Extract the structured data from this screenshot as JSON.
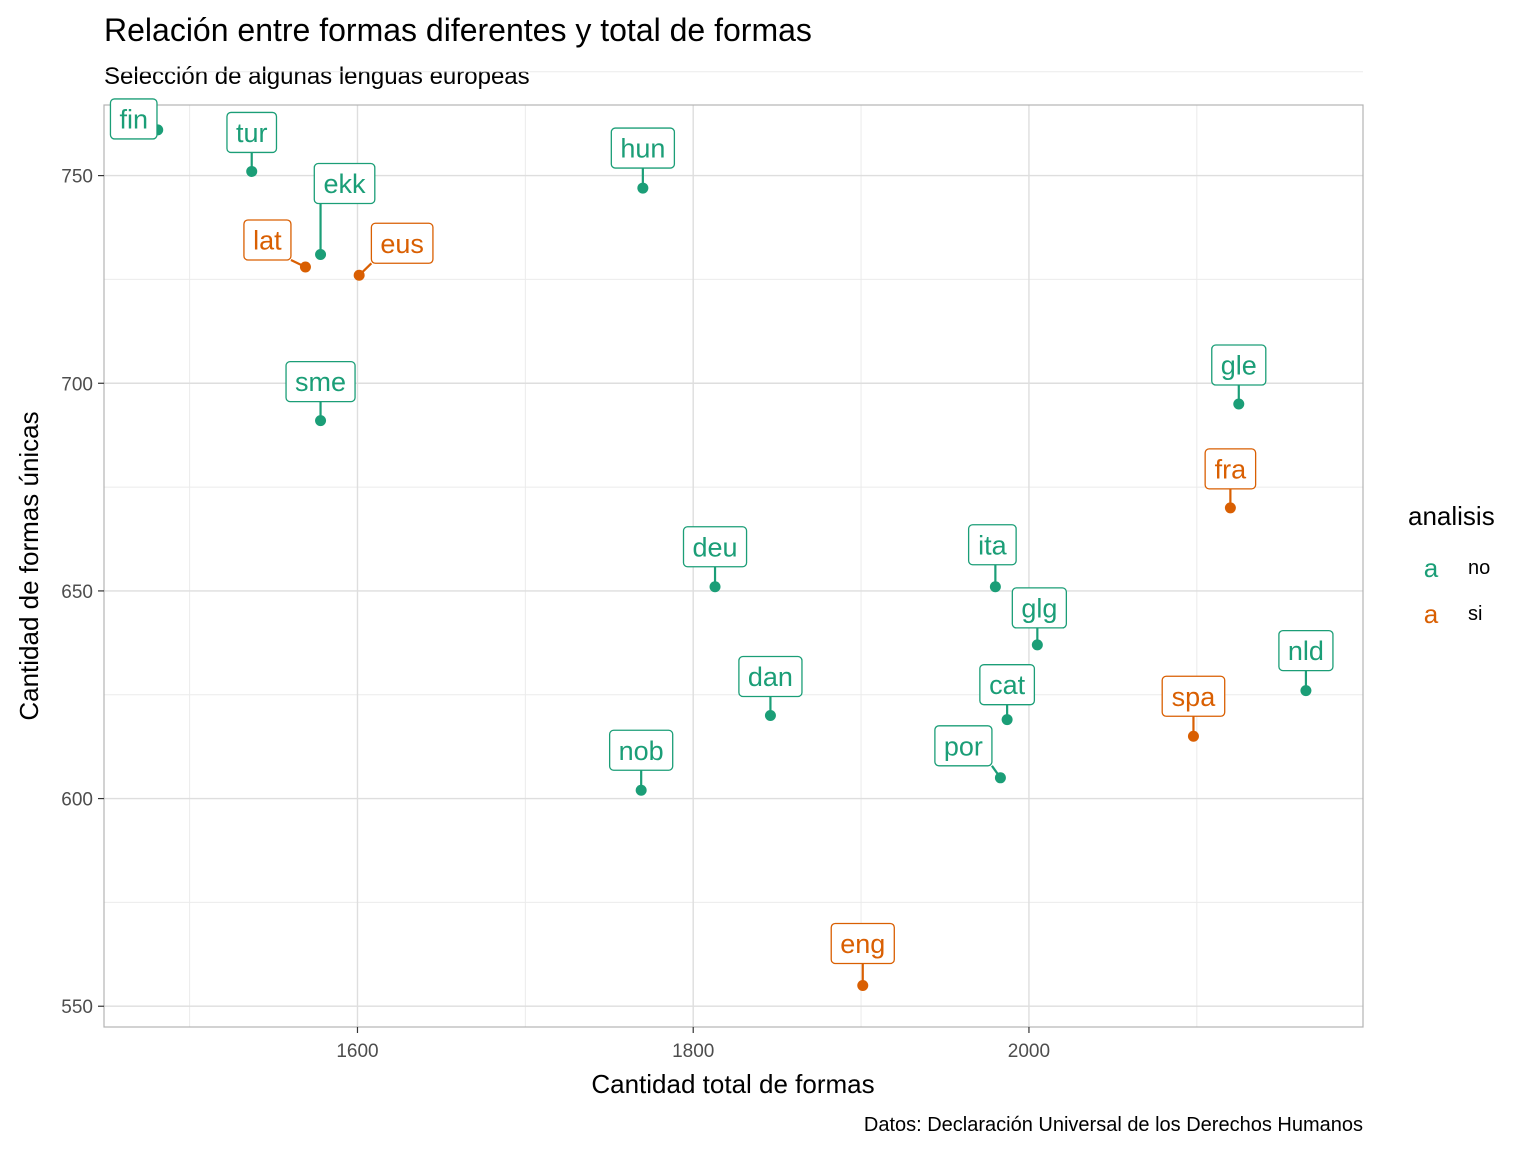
{
  "chart_data": {
    "type": "scatter",
    "title": "Relación entre formas diferentes y total de formas",
    "subtitle": "Selección de algunas lenguas europeas",
    "xlabel": "Cantidad total de formas",
    "ylabel": "Cantidad de formas únicas",
    "caption": "Datos: Declaración Universal de los Derechos Humanos",
    "xlim": [
      1449,
      2199
    ],
    "ylim": [
      545,
      767
    ],
    "x_ticks": [
      1600,
      1800,
      2000
    ],
    "x_tick_labels": [
      "1600",
      "1800",
      "2000"
    ],
    "y_ticks": [
      550,
      600,
      650,
      700,
      750
    ],
    "y_tick_labels": [
      "550",
      "600",
      "650",
      "700",
      "750"
    ],
    "grid": true,
    "legend": {
      "title": "analisis",
      "placement": "right",
      "key_glyph": "a",
      "entries": [
        {
          "label": "no",
          "color": "#1b9e77"
        },
        {
          "label": "si",
          "color": "#d95f02"
        }
      ]
    },
    "colors": {
      "no": "#1b9e77",
      "si": "#d95f02"
    },
    "points": [
      {
        "label": "fin",
        "x": 1481,
        "y": 761,
        "group": "no"
      },
      {
        "label": "tur",
        "x": 1537,
        "y": 751,
        "group": "no"
      },
      {
        "label": "hun",
        "x": 1770,
        "y": 747,
        "group": "no"
      },
      {
        "label": "ekk",
        "x": 1578,
        "y": 731,
        "group": "no"
      },
      {
        "label": "lat",
        "x": 1569,
        "y": 728,
        "group": "si"
      },
      {
        "label": "eus",
        "x": 1601,
        "y": 726,
        "group": "si"
      },
      {
        "label": "sme",
        "x": 1578,
        "y": 691,
        "group": "no"
      },
      {
        "label": "gle",
        "x": 2125,
        "y": 695,
        "group": "no"
      },
      {
        "label": "fra",
        "x": 2120,
        "y": 670,
        "group": "si"
      },
      {
        "label": "deu",
        "x": 1813,
        "y": 651,
        "group": "no"
      },
      {
        "label": "ita",
        "x": 1980,
        "y": 651,
        "group": "no"
      },
      {
        "label": "glg",
        "x": 2005,
        "y": 637,
        "group": "no"
      },
      {
        "label": "nld",
        "x": 2165,
        "y": 626,
        "group": "no"
      },
      {
        "label": "dan",
        "x": 1846,
        "y": 620,
        "group": "no"
      },
      {
        "label": "cat",
        "x": 1987,
        "y": 619,
        "group": "no"
      },
      {
        "label": "spa",
        "x": 2098,
        "y": 615,
        "group": "si"
      },
      {
        "label": "por",
        "x": 1983,
        "y": 605,
        "group": "no"
      },
      {
        "label": "nob",
        "x": 1769,
        "y": 602,
        "group": "no"
      },
      {
        "label": "eng",
        "x": 1901,
        "y": 555,
        "group": "si"
      }
    ]
  }
}
